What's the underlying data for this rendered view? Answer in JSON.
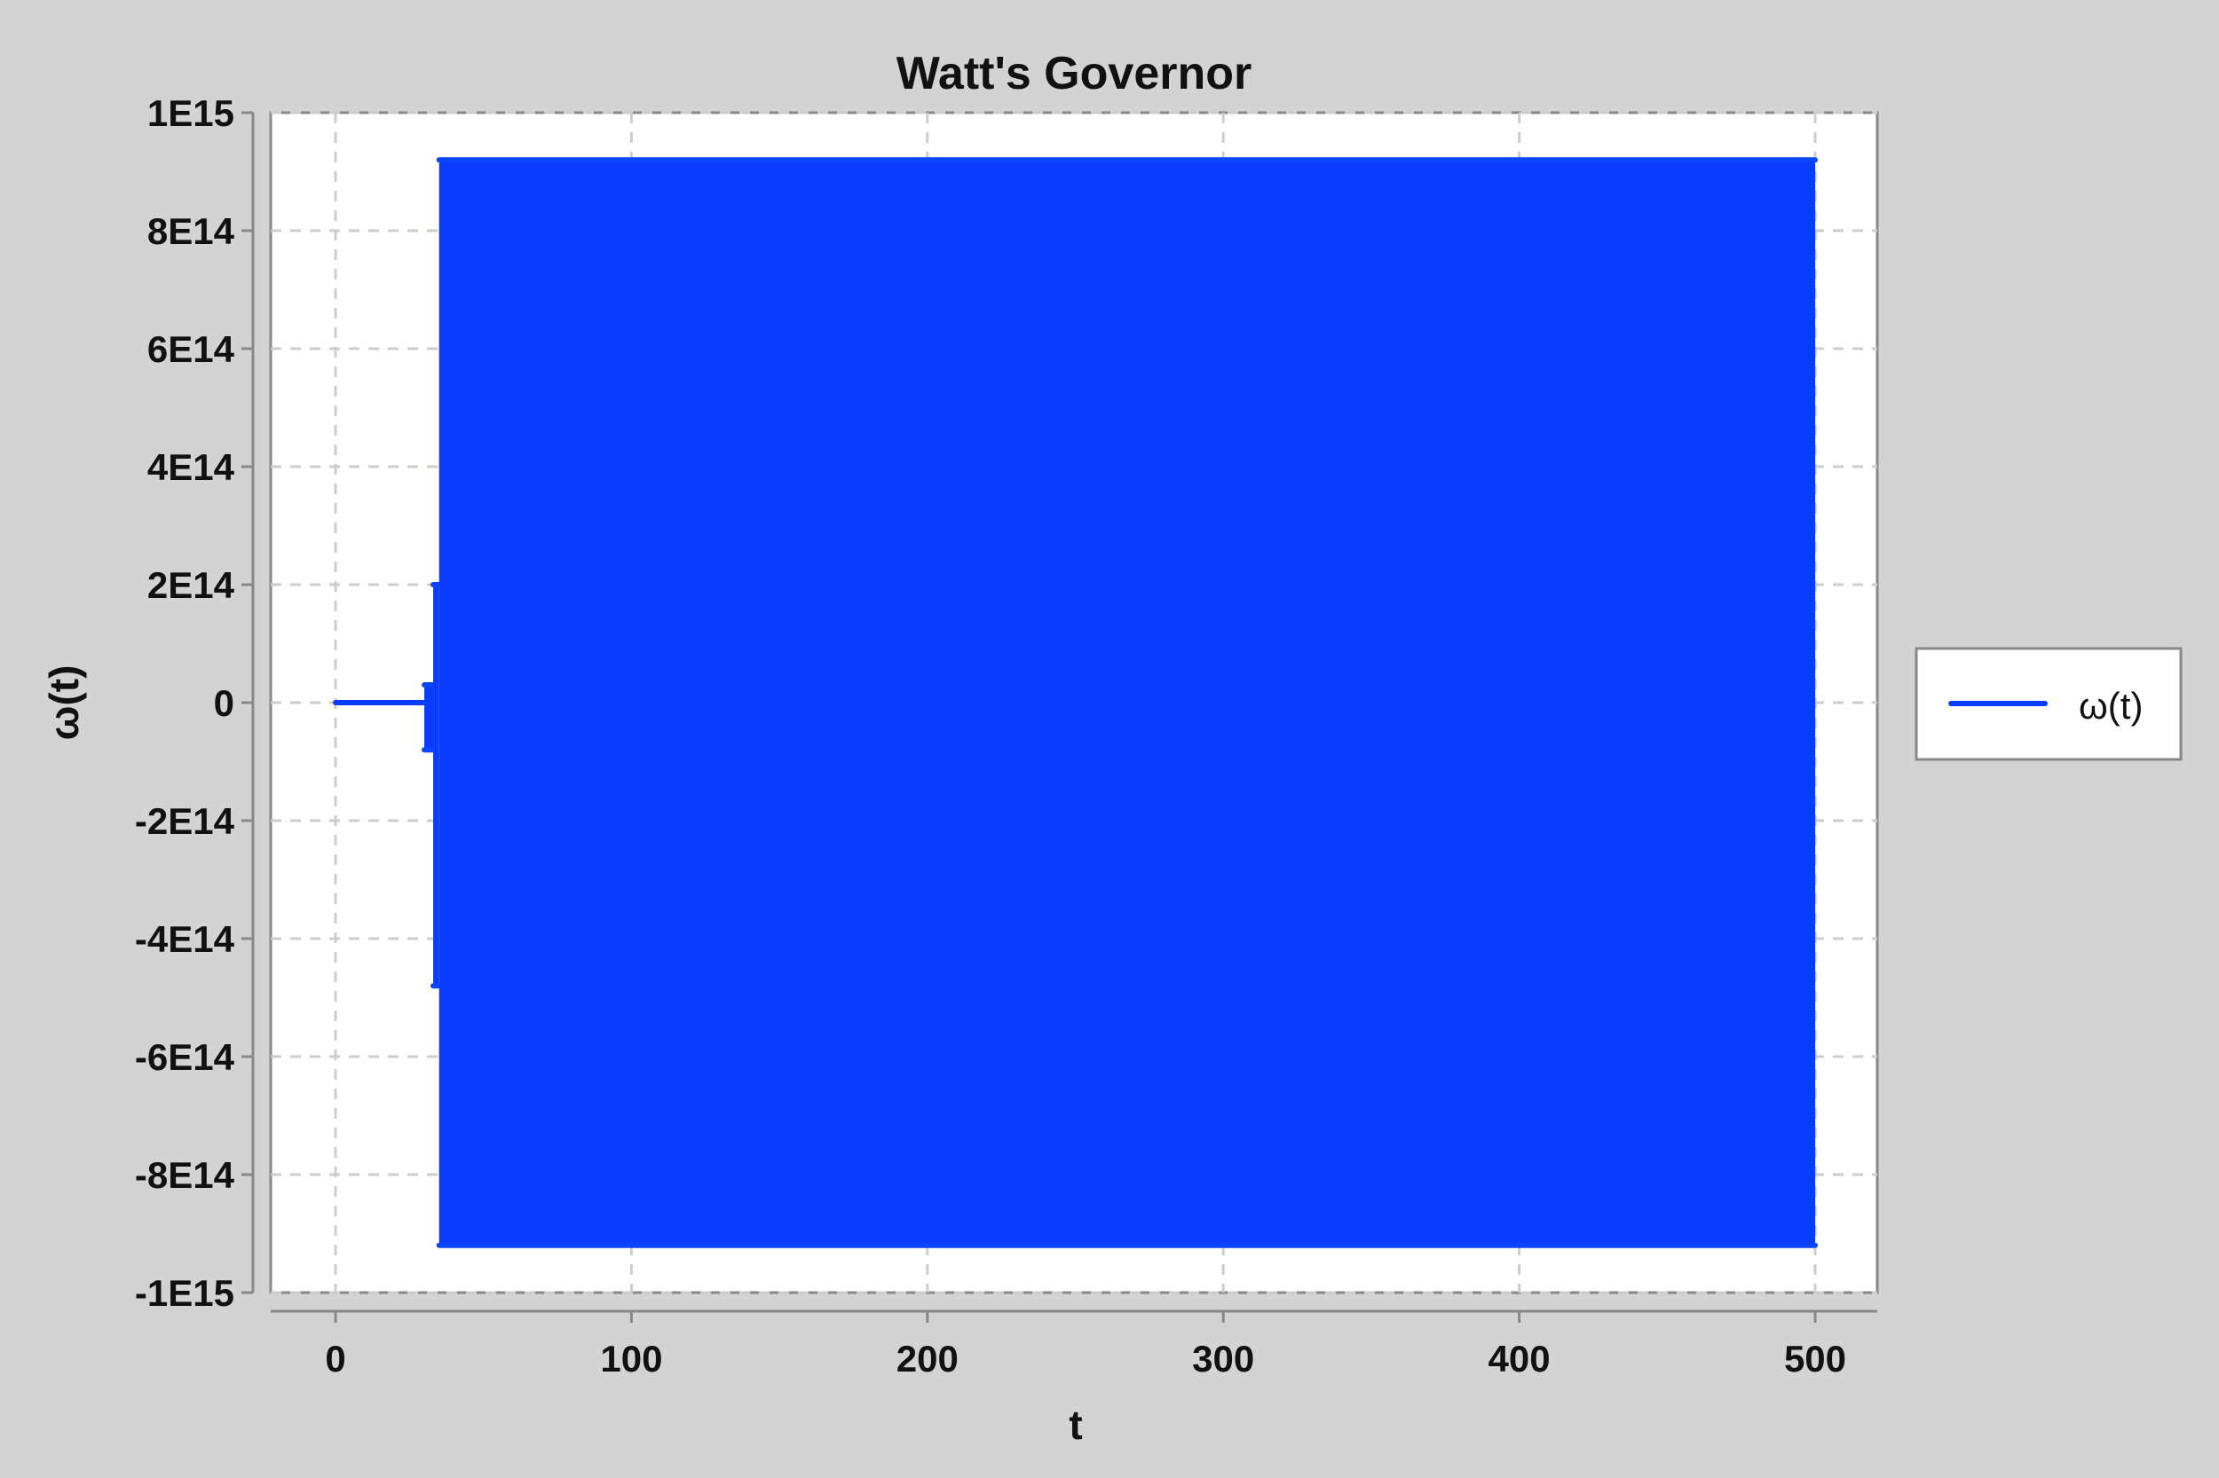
{
  "chart_data": {
    "type": "line",
    "title": "Watt's Governor",
    "xlabel": "t",
    "ylabel": "ω(t)",
    "xlim": [
      -22,
      521
    ],
    "ylim": [
      -1000000000000000.0,
      1000000000000000.0
    ],
    "x_ticks": [
      0,
      100,
      200,
      300,
      400,
      500
    ],
    "x_tick_labels": [
      "0",
      "100",
      "200",
      "300",
      "400",
      "500"
    ],
    "y_ticks": [
      1000000000000000.0,
      800000000000000.0,
      600000000000000.0,
      400000000000000.0,
      200000000000000.0,
      0,
      -200000000000000.0,
      -400000000000000.0,
      -600000000000000.0,
      -800000000000000.0,
      -1000000000000000.0
    ],
    "y_tick_labels": [
      "1E15",
      "8E14",
      "6E14",
      "4E14",
      "2E14",
      "0",
      "-2E14",
      "-4E14",
      "-6E14",
      "-8E14",
      "-1E15"
    ],
    "grid": true,
    "legend_position": "right",
    "series": [
      {
        "name": "ω(t)",
        "color": "#0a3cff",
        "segments": [
          {
            "x_range": [
              0,
              30
            ],
            "y": 0
          },
          {
            "x_range": [
              30,
              33
            ],
            "envelope": [
              -80000000000000.0,
              30000000000000.0
            ]
          },
          {
            "x_range": [
              33,
              35
            ],
            "envelope": [
              -480000000000000.0,
              200000000000000.0
            ]
          },
          {
            "x_range": [
              35,
              500
            ],
            "envelope": [
              -920000000000000.0,
              920000000000000.0
            ]
          }
        ]
      }
    ]
  }
}
